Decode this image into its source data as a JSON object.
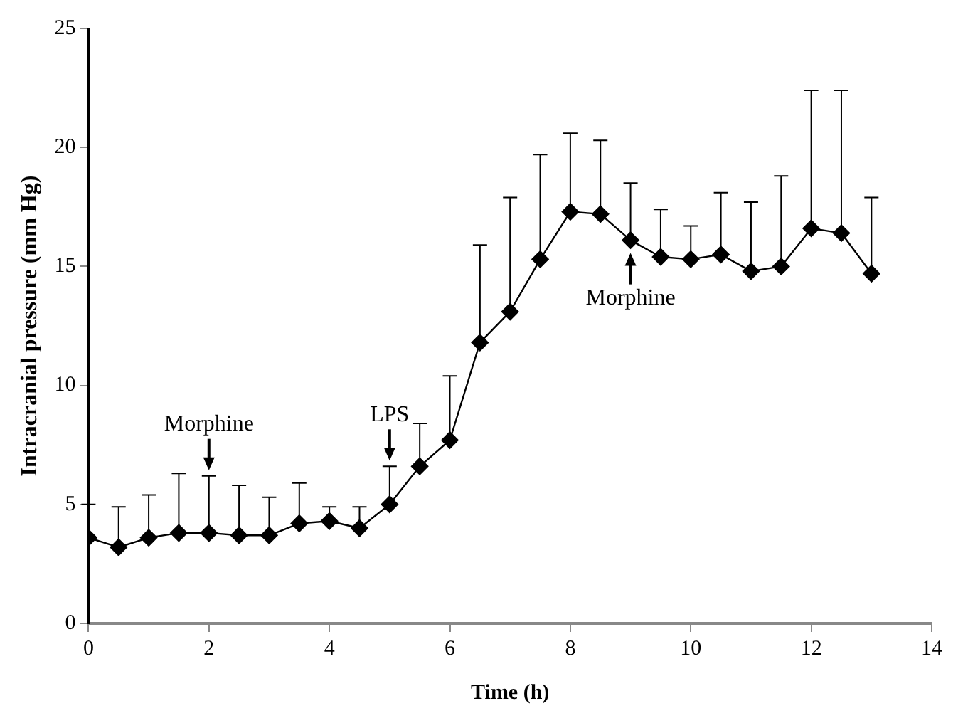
{
  "chart_data": {
    "type": "line",
    "xlabel": "Time (h)",
    "ylabel": "Intracranial pressure (mm Hg)",
    "x": [
      0,
      0.5,
      1,
      1.5,
      2,
      2.5,
      3,
      3.5,
      4,
      4.5,
      5,
      5.5,
      6,
      6.5,
      7,
      7.5,
      8,
      8.5,
      9,
      9.5,
      10,
      10.5,
      11,
      11.5,
      12,
      12.5,
      13
    ],
    "series": [
      {
        "color": "#000000",
        "values": [
          3.6,
          3.2,
          3.6,
          3.8,
          3.8,
          3.7,
          3.7,
          4.2,
          4.3,
          4.0,
          5.0,
          6.6,
          7.7,
          11.8,
          13.1,
          15.3,
          17.3,
          17.2,
          16.1,
          15.4,
          15.3,
          15.5,
          14.8,
          15.0,
          16.6,
          16.4,
          14.7
        ],
        "errors": [
          [
            3.6,
            5.0
          ],
          [
            3.2,
            4.9
          ],
          [
            3.6,
            5.4
          ],
          [
            3.8,
            6.3
          ],
          [
            3.8,
            6.2
          ],
          [
            3.7,
            5.8
          ],
          [
            3.7,
            5.3
          ],
          [
            4.2,
            5.9
          ],
          [
            4.3,
            4.9
          ],
          [
            4.0,
            4.9
          ],
          [
            5.0,
            6.6
          ],
          [
            6.6,
            8.4
          ],
          [
            7.7,
            10.4
          ],
          [
            11.8,
            15.9
          ],
          [
            13.1,
            17.9
          ],
          [
            15.3,
            19.7
          ],
          [
            17.3,
            20.6
          ],
          [
            17.2,
            20.3
          ],
          [
            16.1,
            18.5
          ],
          [
            15.4,
            17.4
          ],
          [
            15.3,
            16.7
          ],
          [
            15.5,
            18.1
          ],
          [
            14.8,
            17.7
          ],
          [
            15.0,
            18.8
          ],
          [
            16.6,
            22.4
          ],
          [
            16.4,
            22.4
          ],
          [
            14.7,
            17.9
          ]
        ]
      }
    ],
    "annotations": [
      {
        "text": "Morphine",
        "x": 2,
        "y": 6.2
      },
      {
        "text": "LPS",
        "x": 5,
        "y": 6.6
      },
      {
        "text": "Morphine",
        "x": 9,
        "y": 16.1
      }
    ],
    "xlim": [
      0,
      14
    ],
    "xticks": [
      0,
      2,
      4,
      6,
      8,
      10,
      12,
      14
    ],
    "ylim": [
      0,
      25
    ],
    "yticks": [
      0,
      5,
      10,
      15,
      20,
      25
    ],
    "grid": false,
    "legend": false,
    "marker": "diamond",
    "line_style": "solid"
  }
}
